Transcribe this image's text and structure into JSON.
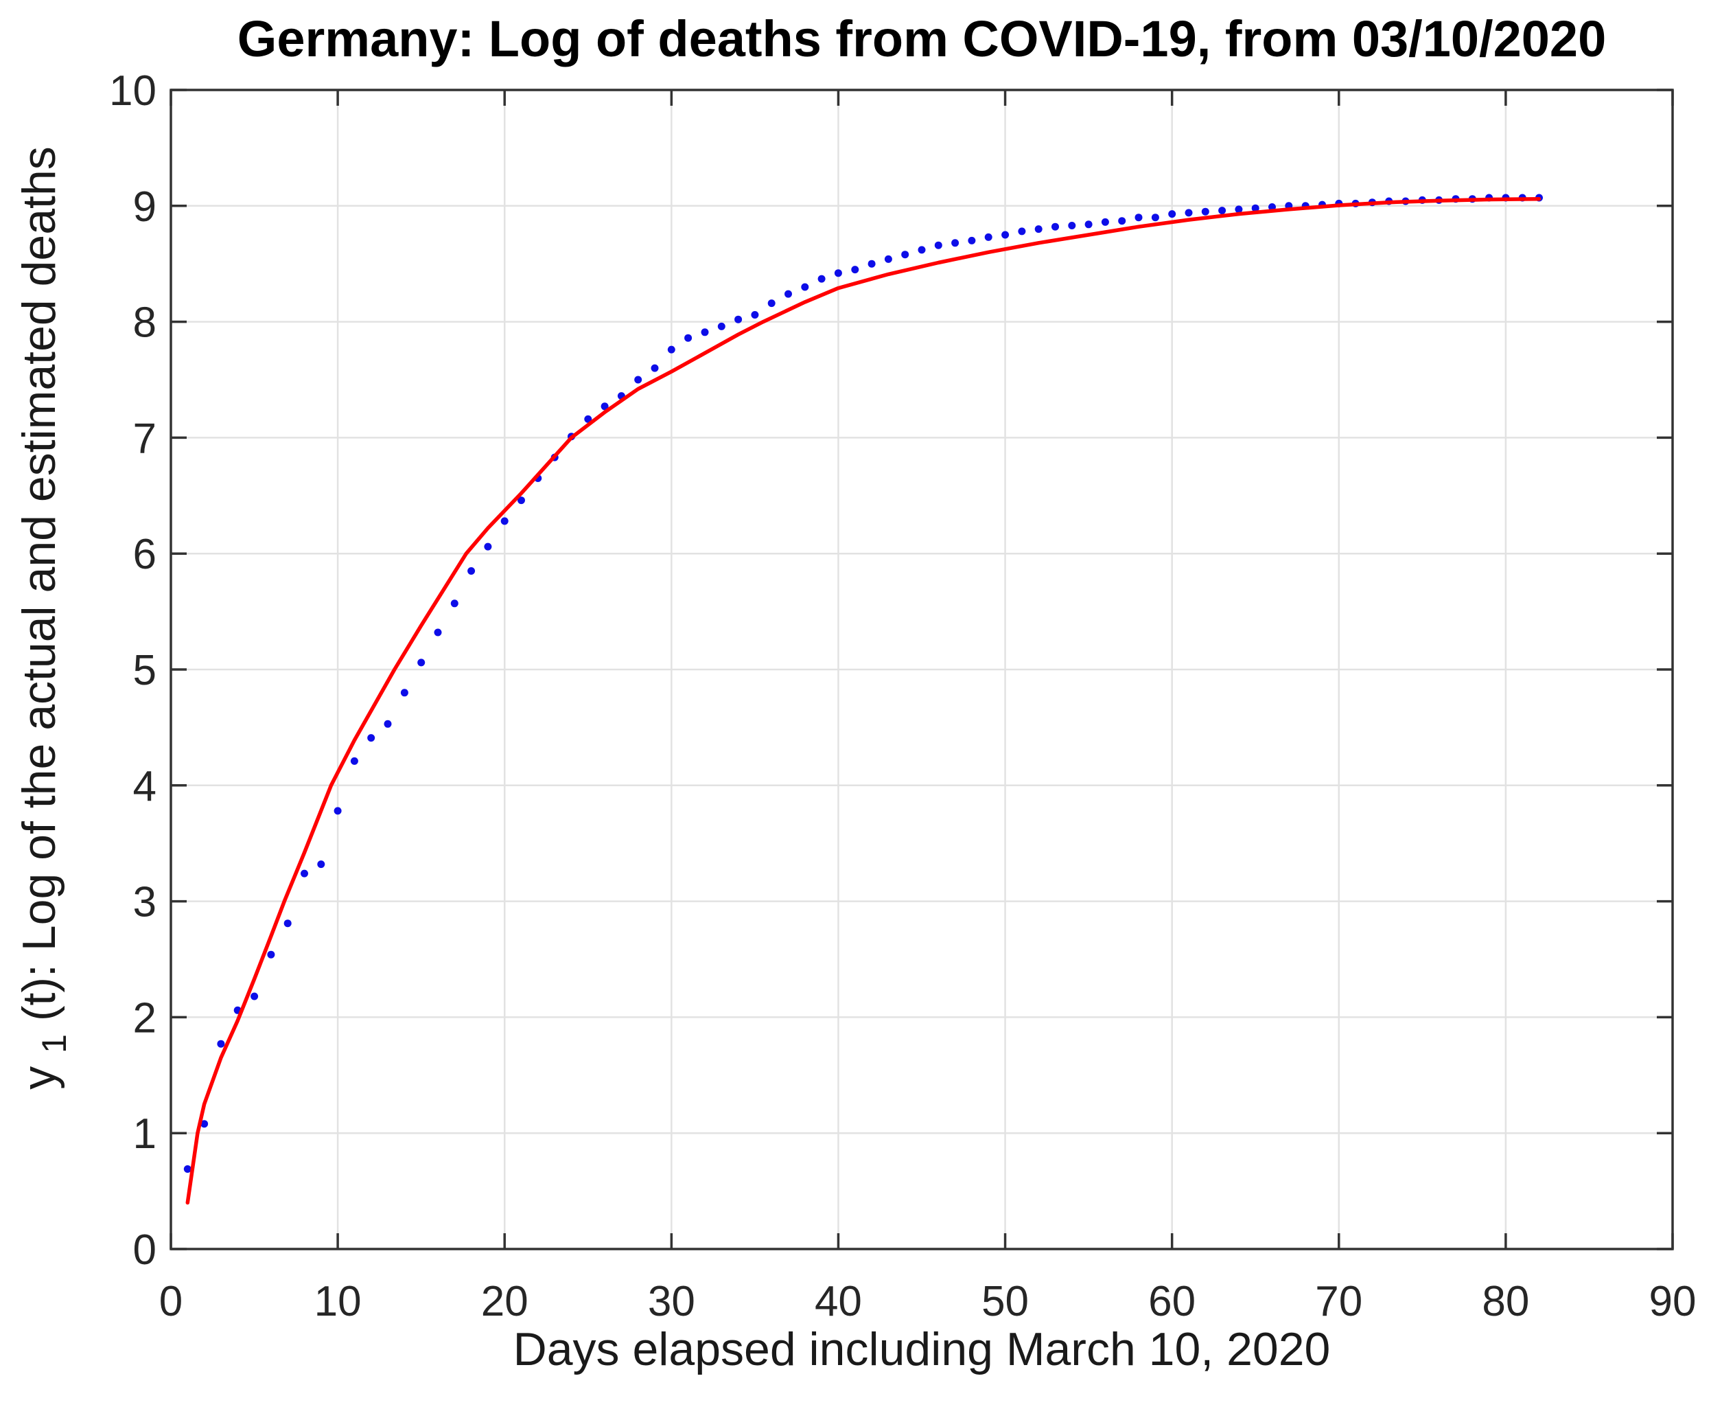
{
  "page": {
    "background": "#ffffff"
  },
  "chart_data": {
    "type": "scatter",
    "title": "Germany: Log of deaths from COVID-19, from 03/10/2020",
    "xlabel": "Days elapsed including March 10, 2020",
    "ylabel": {
      "pre": "y",
      "sub": "1",
      "post": "(t): Log of the actual and estimated deaths"
    },
    "xlim": [
      0,
      90
    ],
    "ylim": [
      0,
      10
    ],
    "xticks": [
      0,
      10,
      20,
      30,
      40,
      50,
      60,
      70,
      80,
      90
    ],
    "yticks": [
      0,
      1,
      2,
      3,
      4,
      5,
      6,
      7,
      8,
      9,
      10
    ],
    "grid": true,
    "legend_position": "none",
    "style": {
      "dot_color": "#0d0de8",
      "fit_color": "#ff0000",
      "grid_color": "#e2e2e2",
      "spine_color": "#333333",
      "background": "#ffffff"
    },
    "series": [
      {
        "name": "actual-log-deaths",
        "type": "scatter",
        "marker": "dot",
        "color": "#0d0de8",
        "x": [
          1,
          2,
          3,
          4,
          5,
          6,
          7,
          8,
          9,
          10,
          11,
          12,
          13,
          14,
          15,
          16,
          17,
          18,
          19,
          20,
          21,
          22,
          23,
          24,
          25,
          26,
          27,
          28,
          29,
          30,
          31,
          32,
          33,
          34,
          35,
          36,
          37,
          38,
          39,
          40,
          41,
          42,
          43,
          44,
          45,
          46,
          47,
          48,
          49,
          50,
          51,
          52,
          53,
          54,
          55,
          56,
          57,
          58,
          59,
          60,
          61,
          62,
          63,
          64,
          65,
          66,
          67,
          68,
          69,
          70,
          71,
          72,
          73,
          74,
          75,
          76,
          77,
          78,
          79,
          80,
          81,
          82
        ],
        "y": [
          0.69,
          1.08,
          1.77,
          2.06,
          2.18,
          2.54,
          2.81,
          3.24,
          3.32,
          3.78,
          4.21,
          4.41,
          4.53,
          4.8,
          5.06,
          5.32,
          5.57,
          5.85,
          6.06,
          6.28,
          6.46,
          6.65,
          6.83,
          7.01,
          7.16,
          7.27,
          7.36,
          7.5,
          7.6,
          7.76,
          7.86,
          7.91,
          7.96,
          8.02,
          8.06,
          8.16,
          8.24,
          8.3,
          8.37,
          8.42,
          8.45,
          8.5,
          8.54,
          8.58,
          8.62,
          8.66,
          8.68,
          8.7,
          8.73,
          8.75,
          8.78,
          8.8,
          8.82,
          8.83,
          8.84,
          8.86,
          8.87,
          8.9,
          8.9,
          8.93,
          8.94,
          8.95,
          8.96,
          8.97,
          8.98,
          8.99,
          9.0,
          9.0,
          9.01,
          9.02,
          9.02,
          9.03,
          9.04,
          9.04,
          9.05,
          9.05,
          9.06,
          9.06,
          9.07,
          9.07,
          9.07,
          9.07
        ]
      },
      {
        "name": "estimated-fit-curve",
        "type": "line",
        "color": "#ff0000",
        "points": [
          [
            1,
            0.4
          ],
          [
            1.6,
            1.0
          ],
          [
            2,
            1.25
          ],
          [
            3,
            1.65
          ],
          [
            4,
            1.97
          ],
          [
            5,
            2.33
          ],
          [
            6,
            2.7
          ],
          [
            6.8,
            3.0
          ],
          [
            8,
            3.42
          ],
          [
            9.6,
            4.0
          ],
          [
            11,
            4.39
          ],
          [
            13.4,
            5.0
          ],
          [
            15,
            5.38
          ],
          [
            17.7,
            6.0
          ],
          [
            19,
            6.22
          ],
          [
            21,
            6.52
          ],
          [
            24,
            7.0
          ],
          [
            26,
            7.22
          ],
          [
            28,
            7.42
          ],
          [
            30,
            7.57
          ],
          [
            32,
            7.73
          ],
          [
            34,
            7.89
          ],
          [
            35.5,
            8.0
          ],
          [
            38,
            8.17
          ],
          [
            40,
            8.29
          ],
          [
            43,
            8.41
          ],
          [
            46,
            8.51
          ],
          [
            49,
            8.6
          ],
          [
            52,
            8.68
          ],
          [
            55,
            8.75
          ],
          [
            58,
            8.82
          ],
          [
            61,
            8.88
          ],
          [
            64,
            8.93
          ],
          [
            67,
            8.97
          ],
          [
            70,
            9.005
          ],
          [
            73,
            9.03
          ],
          [
            76,
            9.045
          ],
          [
            79,
            9.055
          ],
          [
            82,
            9.06
          ]
        ]
      }
    ]
  }
}
